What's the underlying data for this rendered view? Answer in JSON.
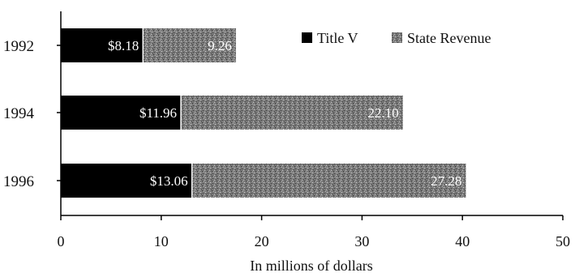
{
  "chart_data": {
    "type": "bar",
    "orientation": "horizontal",
    "stacked": true,
    "categories": [
      "1992",
      "1994",
      "1996"
    ],
    "series": [
      {
        "name": "Title V",
        "values": [
          8.18,
          11.96,
          13.06
        ],
        "labels": [
          "$8.18",
          "$11.96",
          "$13.06"
        ],
        "color": "#000000"
      },
      {
        "name": "State Revenue",
        "values": [
          9.26,
          22.1,
          27.28
        ],
        "labels": [
          "9.26",
          "22.10",
          "27.28"
        ],
        "color": "#7a7a7a"
      }
    ],
    "xlabel": "In millions of dollars",
    "ylabel": "",
    "title": "",
    "xlim": [
      0,
      50
    ],
    "xticks": [
      0,
      10,
      20,
      30,
      40,
      50
    ],
    "grid": false,
    "legend_position": "top-right"
  }
}
